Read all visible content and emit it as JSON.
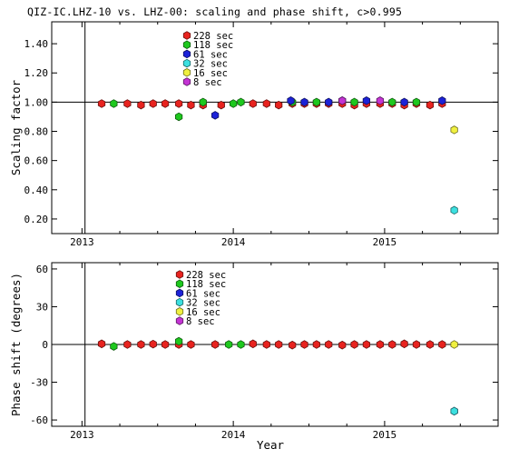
{
  "title": "QIZ-IC.LHZ-10 vs. LHZ-00: scaling and phase shift, c>0.995",
  "legend_entries": [
    {
      "label": "228 sec",
      "color": "#e8231f"
    },
    {
      "label": "118 sec",
      "color": "#1ec81e"
    },
    {
      "label": "61 sec",
      "color": "#1c22d8"
    },
    {
      "label": "32 sec",
      "color": "#3ce0e0"
    },
    {
      "label": "16 sec",
      "color": "#f0f040"
    },
    {
      "label": "8 sec",
      "color": "#c434d4"
    }
  ],
  "chart_data": [
    {
      "type": "scatter",
      "ylabel": "Scaling factor",
      "xlabel": "",
      "xlim": [
        2012.8,
        2015.75
      ],
      "ylim": [
        0.1,
        1.55
      ],
      "x_ticks": [
        2013,
        2014,
        2015
      ],
      "x_tick_labels": [
        "2013",
        "2014",
        "2015"
      ],
      "y_ticks": [
        0.2,
        0.4,
        0.6,
        0.8,
        1.0,
        1.2,
        1.4
      ],
      "y_tick_labels": [
        "0.20",
        "0.40",
        "0.60",
        "0.80",
        "1.00",
        "1.20",
        "1.40"
      ],
      "reference_line_y": 1.0,
      "vertical_line_x": 2013.02,
      "legend_position": "top-center",
      "series": [
        {
          "name": "228 sec",
          "color": "#e8231f",
          "points": [
            [
              2013.13,
              0.99
            ],
            [
              2013.3,
              0.99
            ],
            [
              2013.39,
              0.98
            ],
            [
              2013.47,
              0.99
            ],
            [
              2013.55,
              0.99
            ],
            [
              2013.64,
              0.99
            ],
            [
              2013.72,
              0.98
            ],
            [
              2013.8,
              0.98
            ],
            [
              2013.92,
              0.98
            ],
            [
              2014.13,
              0.99
            ],
            [
              2014.22,
              0.99
            ],
            [
              2014.3,
              0.98
            ],
            [
              2014.39,
              0.99
            ],
            [
              2014.47,
              0.99
            ],
            [
              2014.55,
              0.99
            ],
            [
              2014.63,
              0.99
            ],
            [
              2014.72,
              0.99
            ],
            [
              2014.8,
              0.98
            ],
            [
              2014.88,
              0.99
            ],
            [
              2014.97,
              0.99
            ],
            [
              2015.05,
              0.99
            ],
            [
              2015.13,
              0.98
            ],
            [
              2015.21,
              0.99
            ],
            [
              2015.3,
              0.98
            ],
            [
              2015.38,
              0.99
            ]
          ]
        },
        {
          "name": "118 sec",
          "color": "#1ec81e",
          "points": [
            [
              2013.21,
              0.99
            ],
            [
              2013.64,
              0.9
            ],
            [
              2013.8,
              1.0
            ],
            [
              2014.0,
              0.99
            ],
            [
              2014.05,
              1.0
            ],
            [
              2014.39,
              1.0
            ],
            [
              2014.55,
              1.0
            ],
            [
              2014.8,
              1.0
            ],
            [
              2015.05,
              1.0
            ],
            [
              2015.21,
              1.0
            ]
          ]
        },
        {
          "name": "61 sec",
          "color": "#1c22d8",
          "points": [
            [
              2013.88,
              0.91
            ],
            [
              2014.38,
              1.01
            ],
            [
              2014.47,
              1.0
            ],
            [
              2014.63,
              1.0
            ],
            [
              2014.72,
              1.01
            ],
            [
              2014.88,
              1.01
            ],
            [
              2015.13,
              1.0
            ],
            [
              2015.38,
              1.01
            ]
          ]
        },
        {
          "name": "32 sec",
          "color": "#3ce0e0",
          "points": [
            [
              2015.46,
              0.26
            ]
          ]
        },
        {
          "name": "16 sec",
          "color": "#f0f040",
          "points": [
            [
              2015.46,
              0.81
            ]
          ]
        },
        {
          "name": "8 sec",
          "color": "#c434d4",
          "points": [
            [
              2014.72,
              1.01
            ],
            [
              2014.97,
              1.01
            ]
          ]
        }
      ]
    },
    {
      "type": "scatter",
      "ylabel": "Phase shift (degrees)",
      "xlabel": "Year",
      "xlim": [
        2012.8,
        2015.75
      ],
      "ylim": [
        -65,
        65
      ],
      "x_ticks": [
        2013,
        2014,
        2015
      ],
      "x_tick_labels": [
        "2013",
        "2014",
        "2015"
      ],
      "y_ticks": [
        -60,
        -30,
        0,
        30,
        60
      ],
      "y_tick_labels": [
        "-60",
        "-30",
        "0",
        "30",
        "60"
      ],
      "reference_line_y": 0,
      "vertical_line_x": 2013.02,
      "legend_position": "top-center",
      "series": [
        {
          "name": "228 sec",
          "color": "#e8231f",
          "points": [
            [
              2013.13,
              0.5
            ],
            [
              2013.3,
              0
            ],
            [
              2013.39,
              0
            ],
            [
              2013.47,
              0.3
            ],
            [
              2013.55,
              0
            ],
            [
              2013.64,
              0
            ],
            [
              2013.72,
              0
            ],
            [
              2013.88,
              0
            ],
            [
              2014.13,
              0.5
            ],
            [
              2014.22,
              0
            ],
            [
              2014.3,
              0
            ],
            [
              2014.39,
              -0.5
            ],
            [
              2014.47,
              0
            ],
            [
              2014.55,
              0
            ],
            [
              2014.63,
              0
            ],
            [
              2014.72,
              -0.5
            ],
            [
              2014.8,
              0
            ],
            [
              2014.88,
              0
            ],
            [
              2014.97,
              0
            ],
            [
              2015.05,
              0
            ],
            [
              2015.13,
              0.5
            ],
            [
              2015.21,
              0
            ],
            [
              2015.3,
              0
            ],
            [
              2015.38,
              0
            ]
          ]
        },
        {
          "name": "118 sec",
          "color": "#1ec81e",
          "points": [
            [
              2013.21,
              -1.5
            ],
            [
              2013.64,
              2.5
            ],
            [
              2013.97,
              0
            ],
            [
              2014.05,
              0
            ]
          ]
        },
        {
          "name": "61 sec",
          "color": "#1c22d8",
          "points": [
            [
              2015.46,
              -53
            ]
          ]
        },
        {
          "name": "32 sec",
          "color": "#3ce0e0",
          "points": [
            [
              2015.46,
              -53
            ]
          ]
        },
        {
          "name": "16 sec",
          "color": "#f0f040",
          "points": [
            [
              2015.46,
              0
            ]
          ]
        },
        {
          "name": "8 sec",
          "color": "#c434d4",
          "points": []
        }
      ]
    }
  ]
}
